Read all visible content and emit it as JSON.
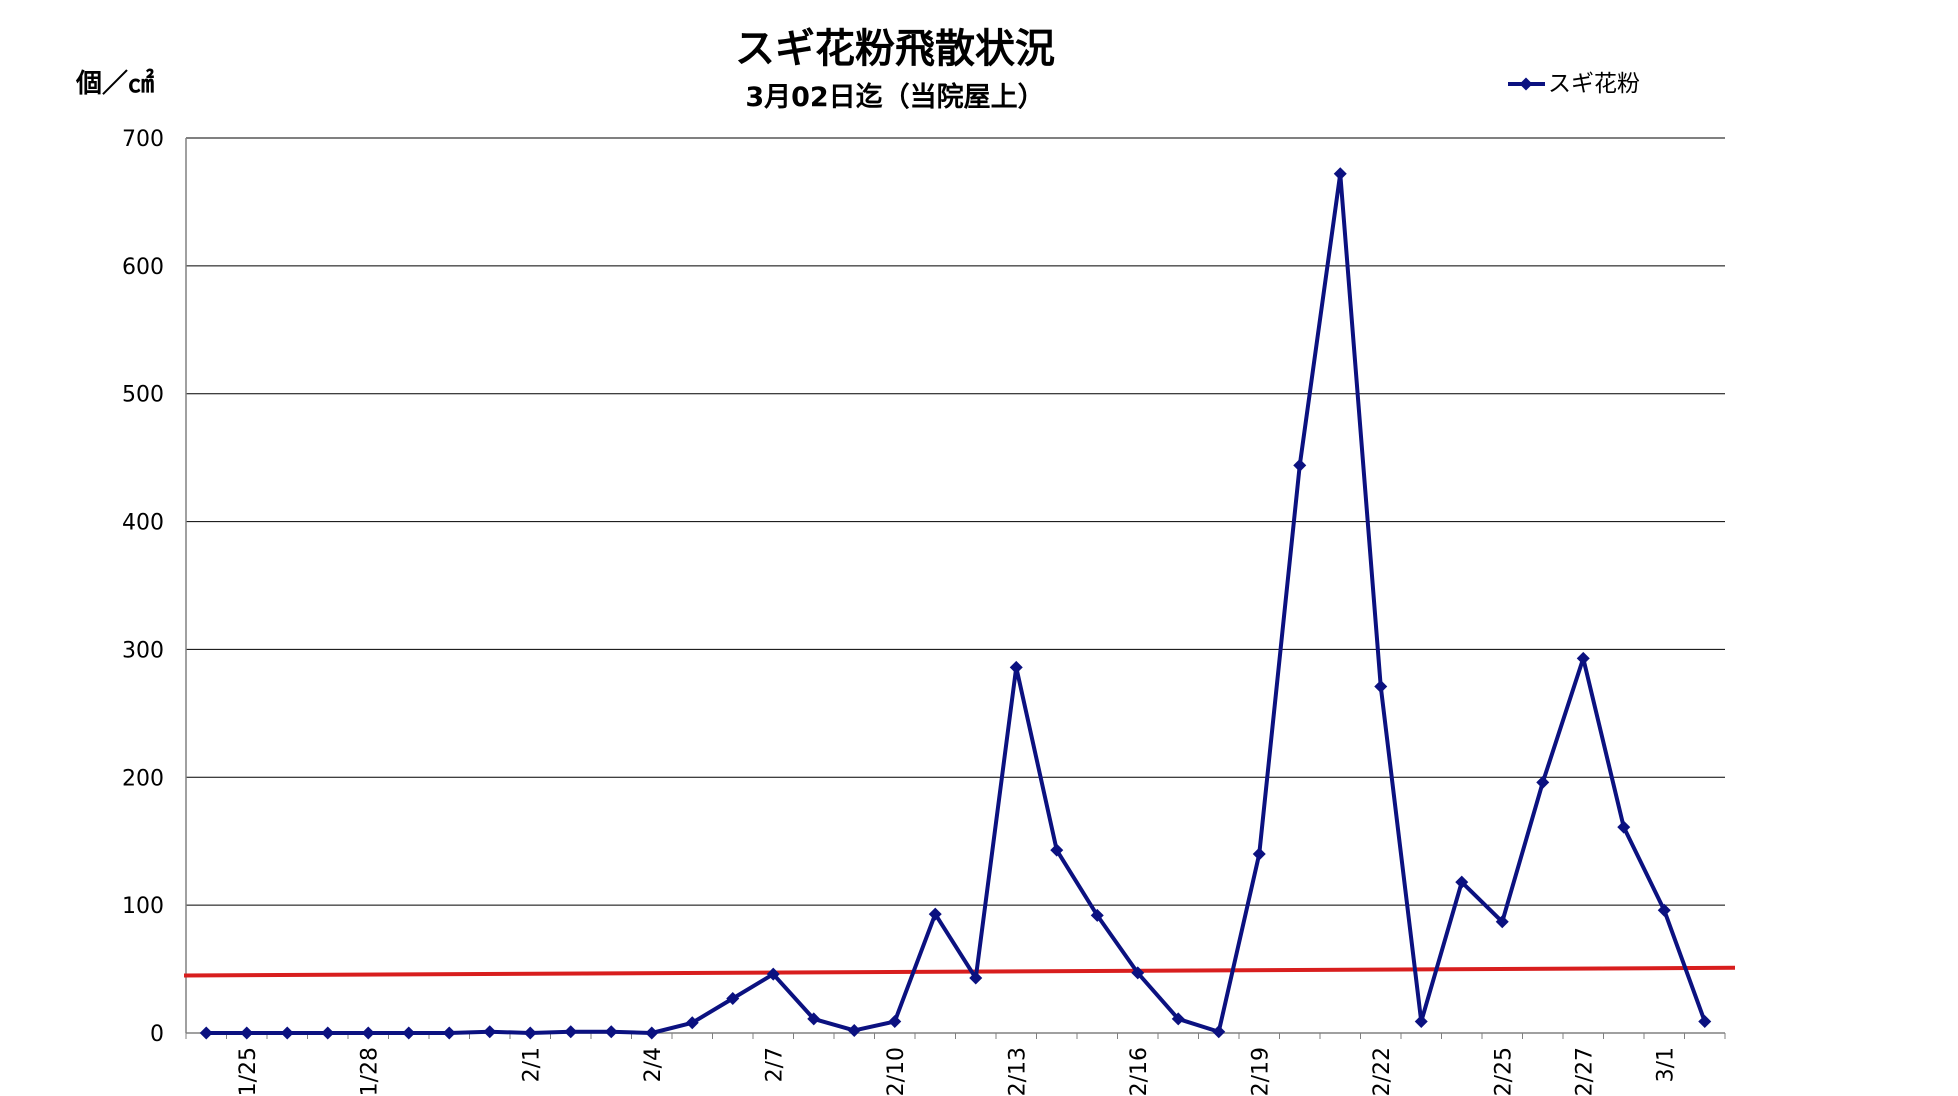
{
  "chart_data": {
    "type": "line",
    "title": "スギ花粉飛散状況",
    "subtitle": "3月02日迄（当院屋上）",
    "ylabel": "個／㎠",
    "xlabel": "",
    "ylim": [
      0,
      700
    ],
    "yticks": [
      0,
      100,
      200,
      300,
      400,
      500,
      600,
      700
    ],
    "grid": true,
    "legend_position": "top-right",
    "colors": {
      "series": "#0b1180",
      "reference": "#d81e1e",
      "grid": "#000000"
    },
    "categories": [
      "1/24",
      "1/25",
      "1/26",
      "1/27",
      "1/28",
      "1/29",
      "1/30",
      "1/31",
      "2/1",
      "2/2",
      "2/3",
      "2/4",
      "2/5",
      "2/6",
      "2/7",
      "2/8",
      "2/9",
      "2/10",
      "2/11",
      "2/12",
      "2/13",
      "2/14",
      "2/15",
      "2/16",
      "2/17",
      "2/18",
      "2/19",
      "2/20",
      "2/21",
      "2/22",
      "2/23",
      "2/24",
      "2/25",
      "2/26",
      "2/27",
      "2/28",
      "3/1",
      "3/2"
    ],
    "tick_labels": [
      {
        "index": 1,
        "label": "1/25"
      },
      {
        "index": 4,
        "label": "1/28"
      },
      {
        "index": 8,
        "label": "2/1"
      },
      {
        "index": 11,
        "label": "2/4"
      },
      {
        "index": 14,
        "label": "2/7"
      },
      {
        "index": 17,
        "label": "2/10"
      },
      {
        "index": 20,
        "label": "2/13"
      },
      {
        "index": 23,
        "label": "2/16"
      },
      {
        "index": 26,
        "label": "2/19"
      },
      {
        "index": 29,
        "label": "2/22"
      },
      {
        "index": 32,
        "label": "2/25"
      },
      {
        "index": 34,
        "label": "2/27"
      },
      {
        "index": 36,
        "label": "3/1"
      }
    ],
    "series": [
      {
        "name": "スギ花粉",
        "values": [
          0,
          0,
          0,
          0,
          0,
          0,
          0,
          1,
          0,
          1,
          1,
          0,
          8,
          27,
          46,
          11,
          2,
          9,
          93,
          43,
          286,
          143,
          92,
          47,
          11,
          1,
          140,
          444,
          672,
          271,
          9,
          118,
          87,
          196,
          293,
          161,
          96,
          9
        ]
      }
    ],
    "reference_line": {
      "start": 45,
      "end": 51
    }
  }
}
